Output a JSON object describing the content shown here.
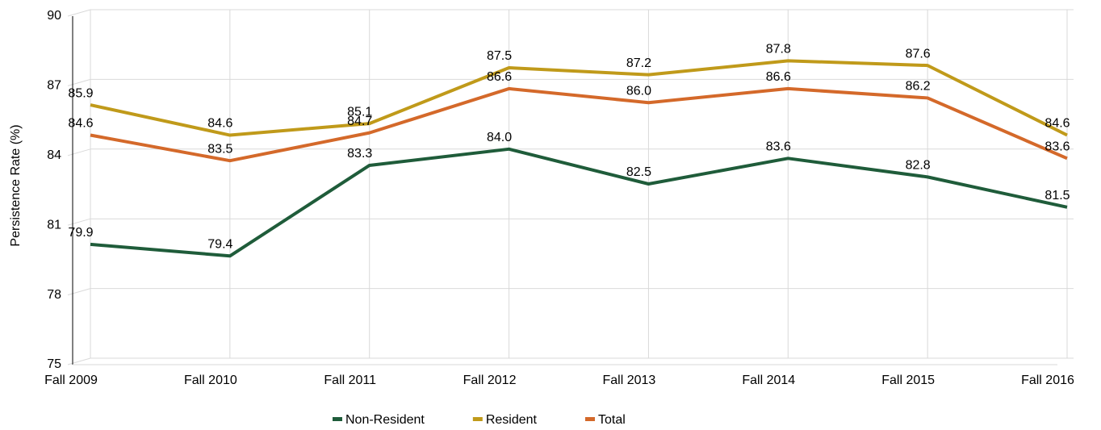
{
  "chart_data": {
    "type": "line",
    "y_label": "Persistence Rate (%)",
    "categories": [
      "Fall 2009",
      "Fall 2010",
      "Fall 2011",
      "Fall 2012",
      "Fall 2013",
      "Fall 2014",
      "Fall 2015",
      "Fall 2016"
    ],
    "series": [
      {
        "name": "Non-Resident",
        "color": "#1f5c3a",
        "values": [
          79.9,
          79.4,
          83.3,
          84.0,
          82.5,
          83.6,
          82.8,
          81.5
        ]
      },
      {
        "name": "Resident",
        "color": "#c09a1a",
        "values": [
          85.9,
          84.6,
          85.1,
          87.5,
          87.2,
          87.8,
          87.6,
          84.6
        ]
      },
      {
        "name": "Total",
        "color": "#d4692a",
        "values": [
          84.6,
          83.5,
          84.7,
          86.6,
          86.0,
          86.6,
          86.2,
          83.6
        ]
      }
    ],
    "value_labels": [
      [
        "79.9",
        "79.4",
        "83.3",
        "84.0",
        "82.5",
        "83.6",
        "82.8",
        "81.5"
      ],
      [
        "85.9",
        "84.6",
        "85.1",
        "87.5",
        "87.2",
        "87.8",
        "87.6",
        "84.6"
      ],
      [
        "84.6",
        "83.5",
        "84.7",
        "86.6",
        "86.0",
        "86.6",
        "86.2",
        "83.6"
      ]
    ],
    "ylim": [
      75,
      90
    ],
    "yticks": [
      75,
      78,
      81,
      84,
      87,
      90
    ],
    "grid": true,
    "legend": "bottom"
  }
}
